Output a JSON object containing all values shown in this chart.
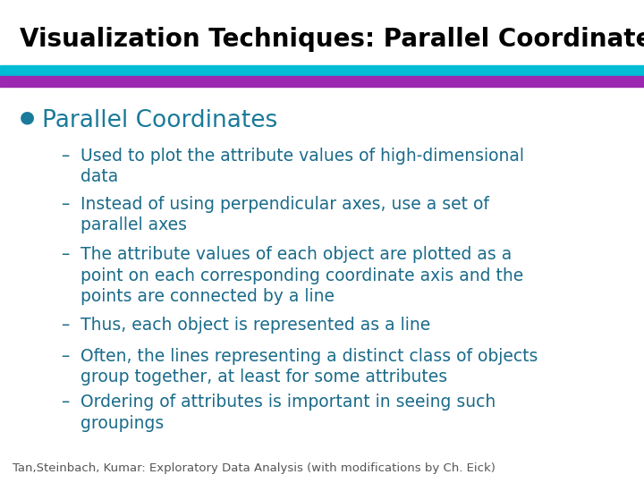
{
  "title": "Visualization Techniques: Parallel Coordinates",
  "title_fontsize": 20,
  "title_fontweight": "bold",
  "title_color": "#000000",
  "bg_color": "#ffffff",
  "bar1_color": "#00BCD4",
  "bar2_color": "#9C27B0",
  "bullet_color": "#1a7a9a",
  "bullet_text": "Parallel Coordinates",
  "bullet_fontsize": 19,
  "sub_color": "#1a6b8a",
  "sub_fontsize": 13.5,
  "footer_text": "Tan,Steinbach, Kumar: Exploratory Data Analysis (with modifications by Ch. Eick)",
  "footer_fontsize": 9.5,
  "subbullets": [
    "Used to plot the attribute values of high-dimensional\ndata",
    "Instead of using perpendicular axes, use a set of\nparallel axes",
    "The attribute values of each object are plotted as a\npoint on each corresponding coordinate axis and the\npoints are connected by a line",
    "Thus, each object is represented as a line",
    "Often, the lines representing a distinct class of objects\ngroup together, at least for some attributes",
    "Ordering of attributes is important in seeing such\ngroupings"
  ]
}
